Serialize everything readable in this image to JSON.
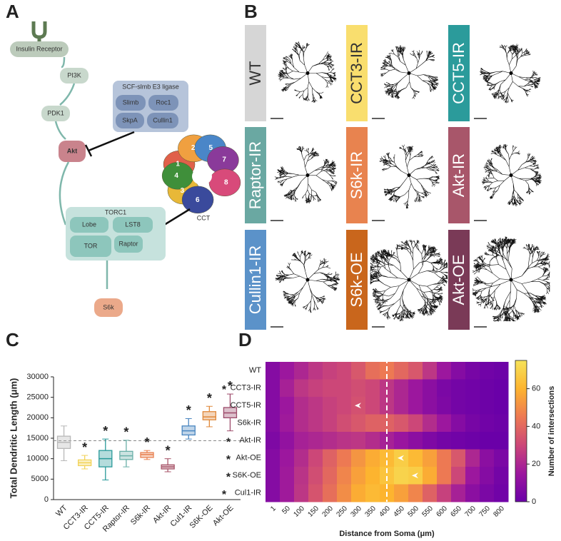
{
  "panels": {
    "a": {
      "label": "A",
      "insulin_receptor": "Insulin Receptor",
      "pi3k": "PI3K",
      "pdk1": "PDK1",
      "akt": "Akt",
      "scf_title": "SCF-slmb E3 ligase",
      "scf_members": [
        "Slimb",
        "Roc1",
        "SkpA",
        "Cullin1"
      ],
      "cct_numbers": [
        "1",
        "2",
        "3",
        "4",
        "5",
        "6",
        "7",
        "8"
      ],
      "cct": "CCT",
      "torc1_title": "TORC1",
      "torc1_members": [
        "Lobe",
        "LST8",
        "TOR",
        "Raptor"
      ],
      "s6k": "S6k"
    },
    "b": {
      "label": "B",
      "genotypes": [
        "WT",
        "CCT3-IR",
        "CCT5-IR",
        "Raptor-IR",
        "S6k-IR",
        "Akt-IR",
        "Cullin1-IR",
        "S6k-OE",
        "Akt-OE"
      ],
      "colors": [
        "#d6d6d6",
        "#f9de6e",
        "#2b9b9b",
        "#6aa8a2",
        "#e8834f",
        "#a8566a",
        "#5b92c9",
        "#c9661c",
        "#7a3a57"
      ]
    },
    "c": {
      "label": "C"
    },
    "d": {
      "label": "D"
    }
  },
  "chart_data": [
    {
      "type": "box",
      "y_label": "Total Dendritic Length (μm)",
      "categories": [
        "WT",
        "CCT3-IR",
        "CCT5-IR",
        "Raptor-IR",
        "S6k-IR",
        "Akt-IR",
        "Cul1-IR",
        "S6K-OE",
        "Akt-OE"
      ],
      "colors": [
        "#b8b8b8",
        "#f2d35a",
        "#2a9a9a",
        "#6ab0a8",
        "#e88050",
        "#a8566a",
        "#4a86c0",
        "#e0883a",
        "#9c4a6a"
      ],
      "min": [
        9500,
        7500,
        4800,
        8000,
        9800,
        6800,
        14800,
        17800,
        16800
      ],
      "q1": [
        12500,
        8300,
        8000,
        9800,
        10300,
        7500,
        15800,
        19500,
        20000
      ],
      "median": [
        14000,
        9000,
        10000,
        10700,
        11000,
        8000,
        16800,
        20200,
        21200
      ],
      "q3": [
        15500,
        9700,
        12000,
        11800,
        11500,
        8500,
        18000,
        21500,
        22500
      ],
      "max": [
        18000,
        10800,
        14800,
        14500,
        12000,
        10000,
        19800,
        22800,
        25800
      ],
      "annotations": [
        null,
        "*",
        "*",
        "*",
        "*",
        "*",
        "*",
        "*",
        "*"
      ],
      "reference_line": 14400,
      "ylim": [
        0,
        30000
      ],
      "yticks": [
        0,
        5000,
        10000,
        15000,
        20000,
        25000,
        30000
      ]
    },
    {
      "type": "heatmap",
      "x_label": "Distance from Soma (μm)",
      "x": [
        1,
        50,
        100,
        150,
        200,
        250,
        300,
        350,
        400,
        450,
        500,
        550,
        600,
        650,
        700,
        750,
        800
      ],
      "rows": [
        "WT",
        "CCT3-IR",
        "CCT5-IR",
        "S6k-IR",
        "Akt-IR",
        "Akt-OE",
        "S6K-OE",
        "Cul1-IR"
      ],
      "row_markers": [
        null,
        "*",
        null,
        null,
        "*",
        "*",
        "*",
        "*"
      ],
      "values": [
        [
          8,
          15,
          20,
          25,
          28,
          30,
          35,
          42,
          45,
          40,
          35,
          25,
          15,
          8,
          4,
          2,
          1
        ],
        [
          8,
          18,
          25,
          28,
          30,
          30,
          32,
          30,
          25,
          20,
          15,
          10,
          5,
          3,
          2,
          1,
          0
        ],
        [
          8,
          15,
          22,
          25,
          28,
          30,
          33,
          30,
          25,
          20,
          15,
          10,
          6,
          3,
          2,
          1,
          0
        ],
        [
          8,
          16,
          22,
          25,
          28,
          32,
          35,
          38,
          38,
          35,
          30,
          22,
          15,
          8,
          4,
          2,
          1
        ],
        [
          6,
          12,
          18,
          20,
          22,
          24,
          25,
          22,
          18,
          14,
          10,
          6,
          3,
          2,
          1,
          0,
          0
        ],
        [
          8,
          15,
          22,
          30,
          38,
          45,
          52,
          58,
          62,
          68,
          62,
          55,
          45,
          35,
          20,
          10,
          5
        ],
        [
          8,
          16,
          24,
          32,
          40,
          48,
          55,
          60,
          65,
          70,
          68,
          58,
          45,
          30,
          15,
          8,
          3
        ],
        [
          8,
          16,
          25,
          34,
          42,
          50,
          58,
          62,
          60,
          55,
          48,
          38,
          28,
          18,
          10,
          5,
          2
        ]
      ],
      "colormap": [
        "#6a00a8",
        "#9c179e",
        "#cc4778",
        "#ed7953",
        "#fdb42f",
        "#f6e35a"
      ],
      "clim": [
        0,
        75
      ],
      "cticks": [
        0,
        20,
        40,
        60
      ],
      "colorbar_label": "Number of intersections",
      "reference_x": 400
    }
  ]
}
